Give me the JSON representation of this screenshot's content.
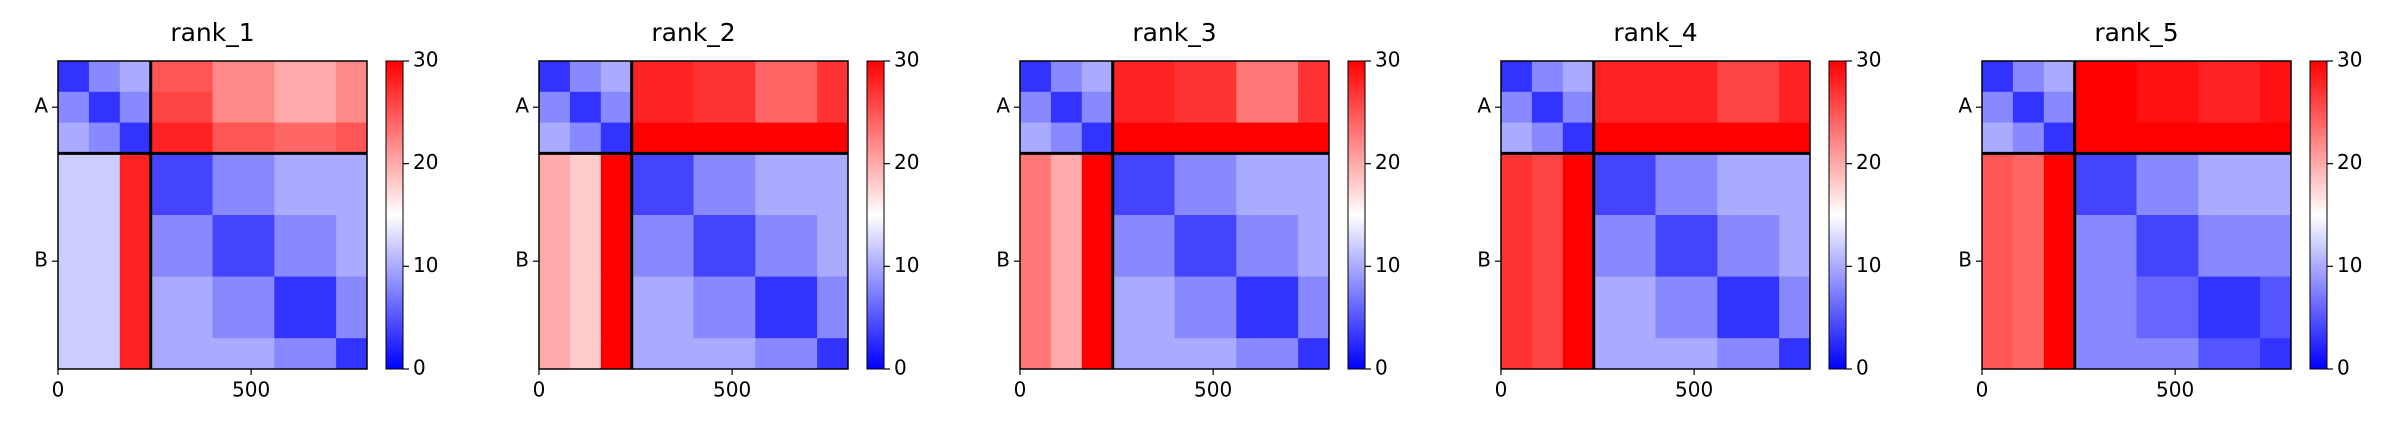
{
  "chart_data": [
    {
      "type": "heatmap",
      "title": "rank_1",
      "edges": [
        0,
        80,
        160,
        240,
        400,
        560,
        720,
        800
      ],
      "xlim": [
        0,
        800
      ],
      "xticks": [
        0,
        500
      ],
      "ylim": [
        800,
        0
      ],
      "yticks": [
        {
          "value": 120,
          "label": "A"
        },
        {
          "value": 520,
          "label": "B"
        }
      ],
      "clim": [
        0,
        30
      ],
      "cticks": [
        0,
        10,
        20,
        30
      ],
      "colormap": "bwr",
      "chain_breaks": [
        240
      ],
      "values": [
        [
          3,
          8,
          10,
          25,
          22,
          20,
          22
        ],
        [
          8,
          3,
          8,
          26,
          22,
          20,
          22
        ],
        [
          10,
          8,
          3,
          28,
          25,
          24,
          25
        ],
        [
          12,
          12,
          28,
          4,
          8,
          10,
          10
        ],
        [
          12,
          12,
          28,
          8,
          4,
          8,
          10
        ],
        [
          12,
          12,
          28,
          10,
          8,
          3,
          8
        ],
        [
          12,
          12,
          28,
          10,
          10,
          8,
          3
        ]
      ]
    },
    {
      "type": "heatmap",
      "title": "rank_2",
      "edges": [
        0,
        80,
        160,
        240,
        400,
        560,
        720,
        800
      ],
      "xlim": [
        0,
        800
      ],
      "xticks": [
        0,
        500
      ],
      "ylim": [
        800,
        0
      ],
      "yticks": [
        {
          "value": 120,
          "label": "A"
        },
        {
          "value": 520,
          "label": "B"
        }
      ],
      "clim": [
        0,
        30
      ],
      "cticks": [
        0,
        10,
        20,
        30
      ],
      "colormap": "bwr",
      "chain_breaks": [
        240
      ],
      "values": [
        [
          3,
          8,
          10,
          28,
          27,
          24,
          27
        ],
        [
          8,
          3,
          8,
          28,
          27,
          24,
          27
        ],
        [
          10,
          8,
          3,
          30,
          30,
          30,
          30
        ],
        [
          20,
          18,
          30,
          4,
          8,
          10,
          10
        ],
        [
          20,
          18,
          30,
          8,
          4,
          8,
          10
        ],
        [
          20,
          18,
          30,
          10,
          8,
          3,
          8
        ],
        [
          20,
          18,
          30,
          10,
          10,
          8,
          3
        ]
      ]
    },
    {
      "type": "heatmap",
      "title": "rank_3",
      "edges": [
        0,
        80,
        160,
        240,
        400,
        560,
        720,
        800
      ],
      "xlim": [
        0,
        800
      ],
      "xticks": [
        0,
        500
      ],
      "ylim": [
        800,
        0
      ],
      "yticks": [
        {
          "value": 120,
          "label": "A"
        },
        {
          "value": 520,
          "label": "B"
        }
      ],
      "clim": [
        0,
        30
      ],
      "cticks": [
        0,
        10,
        20,
        30
      ],
      "colormap": "bwr",
      "chain_breaks": [
        240
      ],
      "values": [
        [
          3,
          8,
          10,
          28,
          27,
          23,
          27
        ],
        [
          8,
          3,
          8,
          28,
          27,
          23,
          27
        ],
        [
          10,
          8,
          3,
          30,
          30,
          30,
          30
        ],
        [
          23,
          20,
          30,
          4,
          8,
          10,
          10
        ],
        [
          23,
          20,
          30,
          8,
          4,
          8,
          10
        ],
        [
          23,
          20,
          30,
          10,
          8,
          3,
          8
        ],
        [
          23,
          20,
          30,
          10,
          10,
          8,
          3
        ]
      ]
    },
    {
      "type": "heatmap",
      "title": "rank_4",
      "edges": [
        0,
        80,
        160,
        240,
        400,
        560,
        720,
        800
      ],
      "xlim": [
        0,
        800
      ],
      "xticks": [
        0,
        500
      ],
      "ylim": [
        800,
        0
      ],
      "yticks": [
        {
          "value": 120,
          "label": "A"
        },
        {
          "value": 520,
          "label": "B"
        }
      ],
      "clim": [
        0,
        30
      ],
      "cticks": [
        0,
        10,
        20,
        30
      ],
      "colormap": "bwr",
      "chain_breaks": [
        240
      ],
      "values": [
        [
          3,
          8,
          10,
          28,
          28,
          26,
          28
        ],
        [
          8,
          3,
          8,
          28,
          28,
          26,
          28
        ],
        [
          10,
          8,
          3,
          30,
          30,
          30,
          30
        ],
        [
          27,
          26,
          30,
          4,
          8,
          10,
          10
        ],
        [
          27,
          26,
          30,
          8,
          4,
          8,
          10
        ],
        [
          27,
          26,
          30,
          10,
          8,
          3,
          8
        ],
        [
          27,
          26,
          30,
          10,
          10,
          8,
          3
        ]
      ]
    },
    {
      "type": "heatmap",
      "title": "rank_5",
      "edges": [
        0,
        80,
        160,
        240,
        400,
        560,
        720,
        800
      ],
      "xlim": [
        0,
        800
      ],
      "xticks": [
        0,
        500
      ],
      "ylim": [
        800,
        0
      ],
      "yticks": [
        {
          "value": 120,
          "label": "A"
        },
        {
          "value": 520,
          "label": "B"
        }
      ],
      "clim": [
        0,
        30
      ],
      "cticks": [
        0,
        10,
        20,
        30
      ],
      "colormap": "bwr",
      "chain_breaks": [
        240
      ],
      "values": [
        [
          3,
          8,
          10,
          30,
          29,
          28,
          29
        ],
        [
          8,
          3,
          8,
          30,
          29,
          28,
          29
        ],
        [
          10,
          8,
          3,
          30,
          30,
          30,
          30
        ],
        [
          25,
          24,
          30,
          4,
          8,
          10,
          10
        ],
        [
          25,
          24,
          30,
          8,
          4,
          8,
          8
        ],
        [
          25,
          24,
          30,
          8,
          6,
          3,
          5
        ],
        [
          25,
          24,
          30,
          8,
          8,
          5,
          3
        ]
      ]
    }
  ]
}
